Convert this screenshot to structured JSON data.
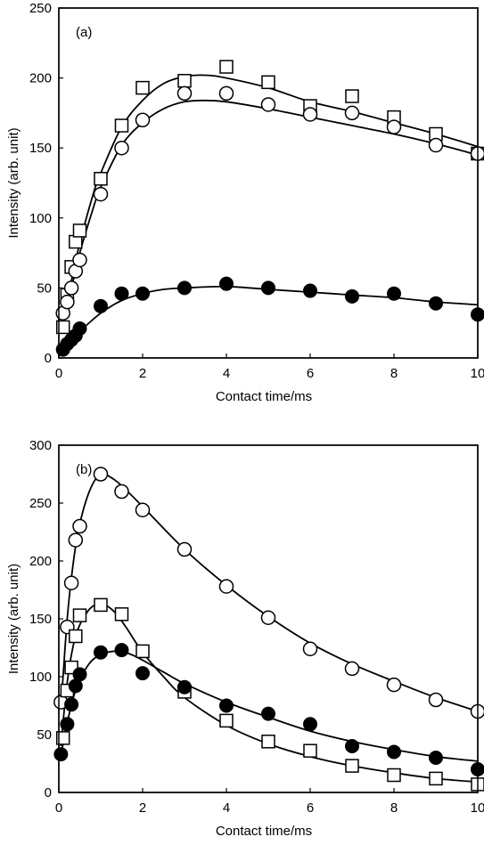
{
  "chart_data": [
    {
      "type": "scatter",
      "panel_label": "(a)",
      "xlabel": "Contact time/ms",
      "ylabel": "Intensity (arb. unit)",
      "xlim": [
        0,
        10
      ],
      "ylim": [
        0,
        250
      ],
      "x_ticks": [
        0,
        2,
        4,
        6,
        8,
        10
      ],
      "y_ticks": [
        0,
        50,
        100,
        150,
        200,
        250
      ],
      "grid": false,
      "series": [
        {
          "marker": "square-open",
          "points": [
            [
              0.1,
              22
            ],
            [
              0.2,
              45
            ],
            [
              0.3,
              65
            ],
            [
              0.4,
              83
            ],
            [
              0.5,
              91
            ],
            [
              1,
              128
            ],
            [
              1.5,
              166
            ],
            [
              2,
              193
            ],
            [
              3,
              198
            ],
            [
              4,
              208
            ],
            [
              5,
              197
            ],
            [
              6,
              180
            ],
            [
              7,
              187
            ],
            [
              8,
              172
            ],
            [
              9,
              160
            ],
            [
              10,
              146
            ]
          ],
          "fit": [
            [
              0.1,
              22
            ],
            [
              0.3,
              55
            ],
            [
              0.5,
              82
            ],
            [
              0.8,
              115
            ],
            [
              1.0,
              132
            ],
            [
              1.5,
              165
            ],
            [
              2.0,
              184
            ],
            [
              2.5,
              196
            ],
            [
              3.0,
              201
            ],
            [
              3.5,
              202
            ],
            [
              4.0,
              200
            ],
            [
              5.0,
              193
            ],
            [
              6.0,
              183
            ],
            [
              7.0,
              176
            ],
            [
              8.0,
              168
            ],
            [
              9.0,
              160
            ],
            [
              10.0,
              151
            ]
          ]
        },
        {
          "marker": "circle-open",
          "points": [
            [
              0.1,
              32
            ],
            [
              0.2,
              40
            ],
            [
              0.3,
              50
            ],
            [
              0.4,
              62
            ],
            [
              0.5,
              70
            ],
            [
              1,
              117
            ],
            [
              1.5,
              150
            ],
            [
              2,
              170
            ],
            [
              3,
              189
            ],
            [
              4,
              189
            ],
            [
              5,
              181
            ],
            [
              6,
              174
            ],
            [
              7,
              175
            ],
            [
              8,
              165
            ],
            [
              9,
              152
            ],
            [
              10,
              146
            ]
          ],
          "fit": [
            [
              0.1,
              30
            ],
            [
              0.3,
              50
            ],
            [
              0.5,
              75
            ],
            [
              0.8,
              105
            ],
            [
              1.0,
              122
            ],
            [
              1.5,
              152
            ],
            [
              2.0,
              168
            ],
            [
              2.5,
              178
            ],
            [
              3.0,
              183
            ],
            [
              3.5,
              184
            ],
            [
              4.0,
              183
            ],
            [
              5.0,
              178
            ],
            [
              6.0,
              172
            ],
            [
              7.0,
              166
            ],
            [
              8.0,
              160
            ],
            [
              9.0,
              153
            ],
            [
              10.0,
              145
            ]
          ]
        },
        {
          "marker": "circle-filled",
          "points": [
            [
              0.1,
              6
            ],
            [
              0.2,
              10
            ],
            [
              0.3,
              13
            ],
            [
              0.4,
              16
            ],
            [
              0.5,
              21
            ],
            [
              1,
              37
            ],
            [
              1.5,
              46
            ],
            [
              2,
              46
            ],
            [
              3,
              50
            ],
            [
              4,
              53
            ],
            [
              5,
              50
            ],
            [
              6,
              48
            ],
            [
              7,
              44
            ],
            [
              8,
              46
            ],
            [
              9,
              39
            ],
            [
              10,
              31
            ]
          ],
          "fit": [
            [
              0.05,
              5
            ],
            [
              0.3,
              13
            ],
            [
              0.5,
              19
            ],
            [
              1.0,
              32
            ],
            [
              1.5,
              41
            ],
            [
              2.0,
              46
            ],
            [
              2.5,
              49
            ],
            [
              3.0,
              50
            ],
            [
              4.0,
              51
            ],
            [
              5.0,
              49
            ],
            [
              6.0,
              47
            ],
            [
              7.0,
              45
            ],
            [
              8.0,
              43
            ],
            [
              9.0,
              40
            ],
            [
              10.0,
              38
            ]
          ]
        }
      ]
    },
    {
      "type": "scatter",
      "panel_label": "(b)",
      "xlabel": "Contact time/ms",
      "ylabel": "Intensity (arb. unit)",
      "xlim": [
        0,
        10
      ],
      "ylim": [
        0,
        300
      ],
      "x_ticks": [
        0,
        2,
        4,
        6,
        8,
        10
      ],
      "y_ticks": [
        0,
        50,
        100,
        150,
        200,
        250,
        300
      ],
      "grid": false,
      "series": [
        {
          "marker": "circle-open",
          "points": [
            [
              0.05,
              78
            ],
            [
              0.2,
              143
            ],
            [
              0.3,
              181
            ],
            [
              0.4,
              218
            ],
            [
              0.5,
              230
            ],
            [
              1,
              275
            ],
            [
              1.5,
              260
            ],
            [
              2,
              244
            ],
            [
              3,
              210
            ],
            [
              4,
              178
            ],
            [
              5,
              151
            ],
            [
              6,
              124
            ],
            [
              7,
              107
            ],
            [
              8,
              93
            ],
            [
              9,
              80
            ],
            [
              10,
              70
            ]
          ],
          "fit": [
            [
              0.05,
              72
            ],
            [
              0.2,
              150
            ],
            [
              0.35,
              200
            ],
            [
              0.5,
              232
            ],
            [
              0.75,
              262
            ],
            [
              1.0,
              275
            ],
            [
              1.25,
              272
            ],
            [
              1.5,
              265
            ],
            [
              2.0,
              247
            ],
            [
              3.0,
              210
            ],
            [
              4.0,
              179
            ],
            [
              5.0,
              152
            ],
            [
              6.0,
              129
            ],
            [
              7.0,
              111
            ],
            [
              8.0,
              96
            ],
            [
              9.0,
              82
            ],
            [
              10.0,
              70
            ]
          ]
        },
        {
          "marker": "square-open",
          "points": [
            [
              0.1,
              47
            ],
            [
              0.2,
              88
            ],
            [
              0.3,
              108
            ],
            [
              0.4,
              135
            ],
            [
              0.5,
              153
            ],
            [
              1,
              162
            ],
            [
              1.5,
              154
            ],
            [
              2,
              122
            ],
            [
              3,
              87
            ],
            [
              4,
              62
            ],
            [
              5,
              44
            ],
            [
              6,
              36
            ],
            [
              7,
              23
            ],
            [
              8,
              15
            ],
            [
              9,
              12
            ],
            [
              10,
              7
            ]
          ],
          "fit": [
            [
              0.05,
              40
            ],
            [
              0.2,
              95
            ],
            [
              0.4,
              135
            ],
            [
              0.7,
              157
            ],
            [
              1.0,
              163
            ],
            [
              1.3,
              157
            ],
            [
              1.6,
              143
            ],
            [
              2.0,
              121
            ],
            [
              2.5,
              100
            ],
            [
              3.0,
              82
            ],
            [
              4.0,
              58
            ],
            [
              5.0,
              42
            ],
            [
              6.0,
              31
            ],
            [
              7.0,
              23
            ],
            [
              8.0,
              17
            ],
            [
              9.0,
              12
            ],
            [
              10.0,
              9
            ]
          ]
        },
        {
          "marker": "circle-filled",
          "points": [
            [
              0.05,
              33
            ],
            [
              0.2,
              59
            ],
            [
              0.3,
              76
            ],
            [
              0.4,
              92
            ],
            [
              0.5,
              102
            ],
            [
              1,
              121
            ],
            [
              1.5,
              123
            ],
            [
              2,
              103
            ],
            [
              3,
              91
            ],
            [
              4,
              75
            ],
            [
              5,
              68
            ],
            [
              6,
              59
            ],
            [
              7,
              40
            ],
            [
              8,
              35
            ],
            [
              9,
              30
            ],
            [
              10,
              20
            ]
          ],
          "fit": [
            [
              0.05,
              32
            ],
            [
              0.2,
              60
            ],
            [
              0.4,
              88
            ],
            [
              0.7,
              110
            ],
            [
              1.0,
              119
            ],
            [
              1.4,
              122
            ],
            [
              1.8,
              118
            ],
            [
              2.5,
              104
            ],
            [
              3.0,
              94
            ],
            [
              4.0,
              78
            ],
            [
              5.0,
              65
            ],
            [
              6.0,
              53
            ],
            [
              7.0,
              44
            ],
            [
              8.0,
              37
            ],
            [
              9.0,
              31
            ],
            [
              10.0,
              27
            ]
          ]
        }
      ]
    }
  ]
}
